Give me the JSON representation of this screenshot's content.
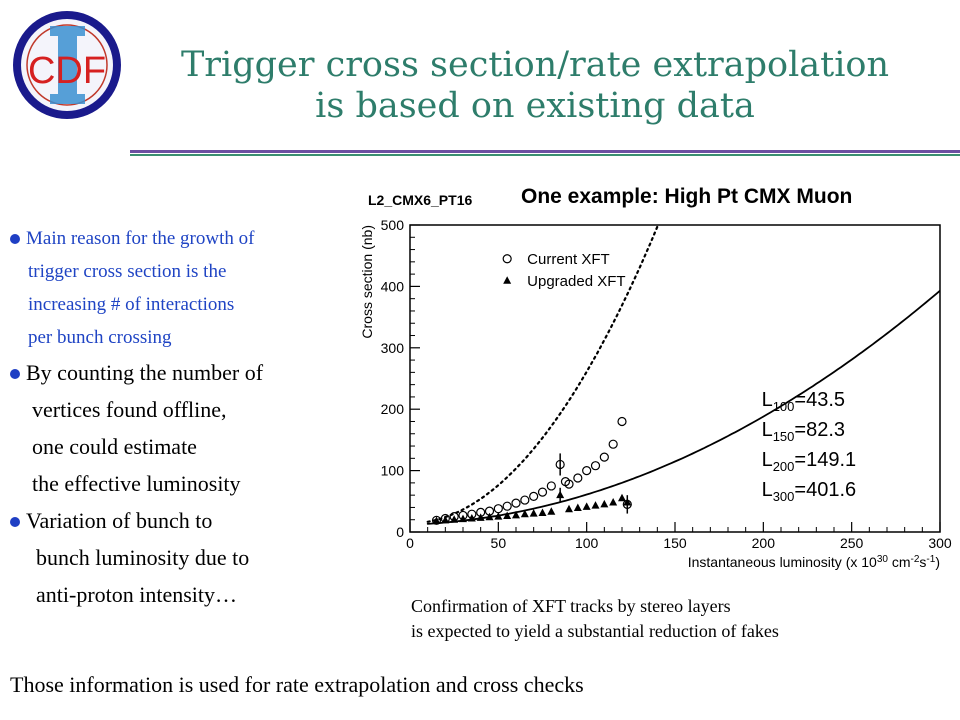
{
  "logo": {
    "text": "CDF",
    "numeral": "II"
  },
  "title": {
    "line1": "Trigger cross section/rate extrapolation",
    "line2": "is based on existing data"
  },
  "bullets": {
    "b1": [
      "Main reason for the growth of",
      "trigger cross section is the",
      "increasing  # of interactions",
      "per bunch crossing"
    ],
    "b2": [
      "By counting the number of",
      "vertices found offline,",
      "one could estimate",
      "the effective luminosity"
    ],
    "b3": [
      "Variation of bunch to",
      "bunch luminosity due to",
      "anti-proton intensity…"
    ]
  },
  "plot_heading": "One example: High Pt CMX Muon",
  "caption": {
    "line1": "Confirmation of XFT tracks by stereo layers",
    "line2": "is expected to yield a substantial reduction of fakes"
  },
  "footer": "Those information is used for rate extrapolation and cross checks",
  "colors": {
    "title": "#2e7d6b",
    "blue_text": "#1f44c4",
    "bullet": "#1f3fc4",
    "rule_purple": "#6b4fa0",
    "rule_green": "#3a8f70"
  },
  "chart_data": {
    "type": "scatter",
    "title": "L2_CMX6_PT16",
    "xlabel": "Instantaneous luminosity (x 10",
    "xlabel_sup1": "30",
    "xlabel_mid": " cm",
    "xlabel_sup2": "-2",
    "xlabel_end": "s",
    "xlabel_sup3": "-1",
    "xlabel_close": ")",
    "ylabel": "Cross section (nb)",
    "xlim": [
      0,
      300
    ],
    "ylim": [
      0,
      500
    ],
    "x_ticks": [
      "0",
      "50",
      "100",
      "150",
      "200",
      "250",
      "300"
    ],
    "y_ticks": [
      "0",
      "100",
      "200",
      "300",
      "400",
      "500"
    ],
    "legend_position": "top-left",
    "series": [
      {
        "name": "Current XFT",
        "marker": "open-circle",
        "x": [
          15,
          20,
          25,
          30,
          35,
          40,
          45,
          50,
          55,
          60,
          65,
          70,
          75,
          80,
          85,
          88,
          90,
          95,
          100,
          105,
          110,
          115,
          120,
          123
        ],
        "y": [
          19,
          22,
          25,
          27,
          29,
          32,
          34,
          38,
          42,
          47,
          52,
          58,
          65,
          75,
          110,
          82,
          78,
          88,
          100,
          108,
          122,
          143,
          180,
          45
        ]
      },
      {
        "name": "Upgraded XFT",
        "marker": "filled-triangle",
        "x": [
          15,
          20,
          25,
          30,
          35,
          40,
          45,
          50,
          55,
          60,
          65,
          70,
          75,
          80,
          85,
          90,
          95,
          100,
          105,
          110,
          115,
          120,
          123
        ],
        "y": [
          18,
          19,
          20,
          21,
          22,
          23,
          24,
          25,
          26,
          27,
          29,
          30,
          31,
          33,
          60,
          37,
          39,
          41,
          43,
          45,
          48,
          55,
          48
        ]
      }
    ],
    "fits": [
      {
        "style": "dotted",
        "coefficients": [
          14,
          0.02,
          0.0245
        ]
      },
      {
        "style": "solid",
        "coefficients": [
          12,
          0.1,
          0.0039
        ]
      }
    ],
    "annotations": [
      {
        "sub": "100",
        "value": "=43.5"
      },
      {
        "sub": "150",
        "value": "=82.3"
      },
      {
        "sub": "200",
        "value": "=149.1"
      },
      {
        "sub": "300",
        "value": "=401.6"
      }
    ],
    "annotation_symbol": "L"
  }
}
